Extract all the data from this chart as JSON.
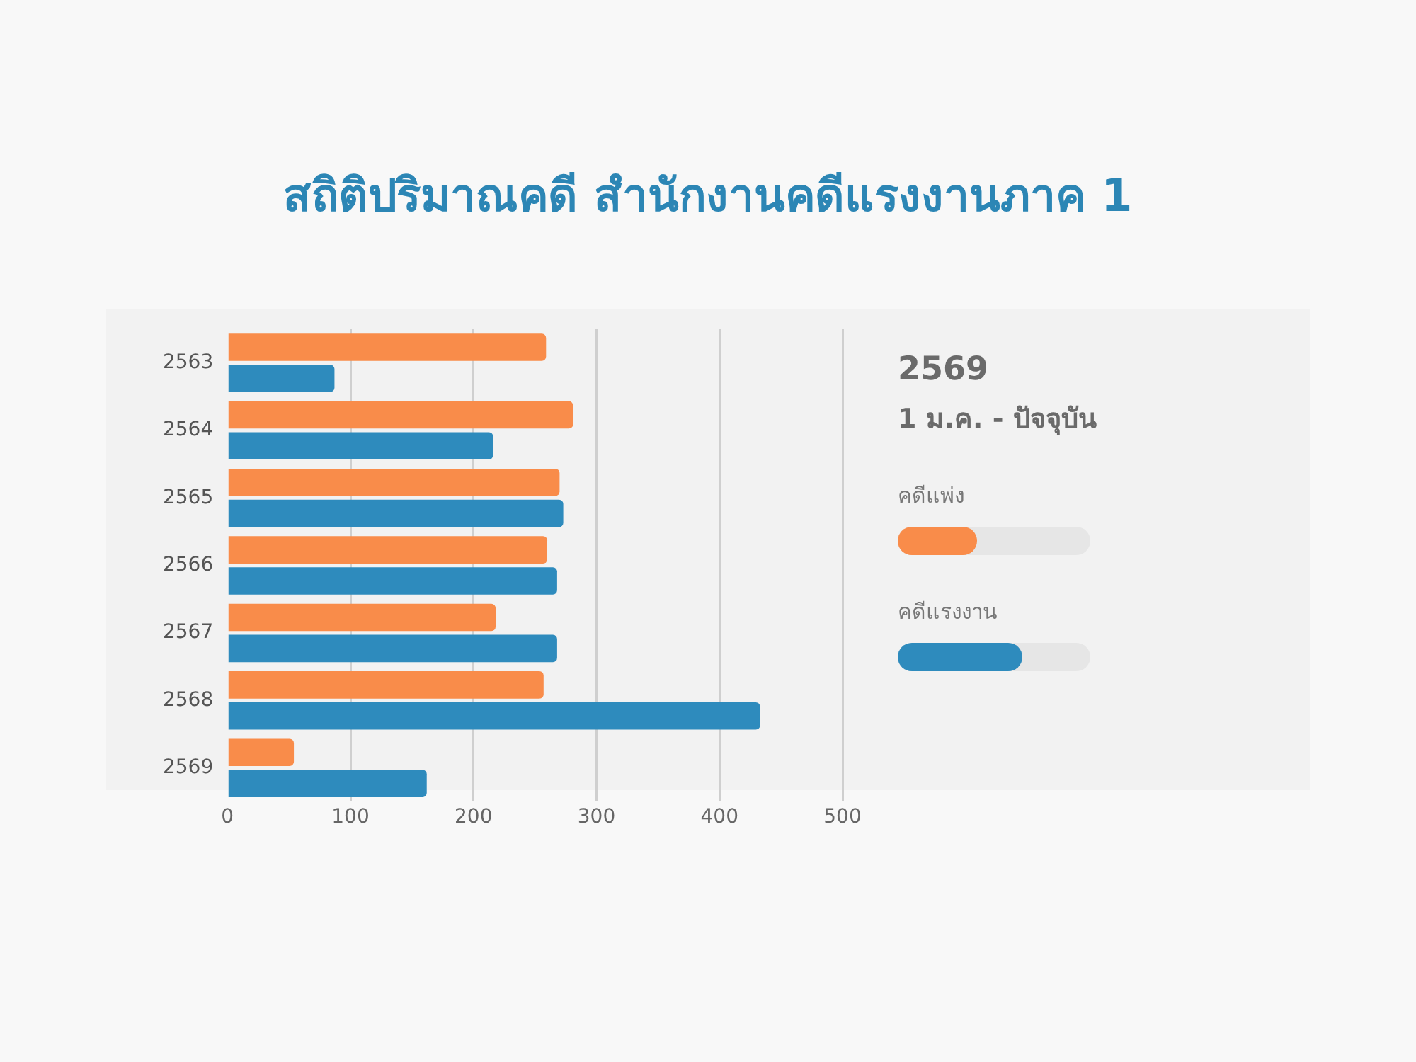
{
  "chart_data": {
    "type": "bar",
    "orientation": "horizontal",
    "title": "สถิติปริมาณคดี สำนักงานคดีแรงงานภาค 1",
    "annotations": [
      "2569",
      "1 ม.ค. - ปัจจุบัน"
    ],
    "categories": [
      "2563",
      "2564",
      "2565",
      "2566",
      "2567",
      "2568",
      "2569"
    ],
    "series": [
      {
        "name": "คดีแพ่ง",
        "color": "#f98c4a",
        "values": [
          259,
          281,
          270,
          260,
          218,
          257,
          54
        ]
      },
      {
        "name": "คดีแรงงาน",
        "color": "#2e8bbd",
        "values": [
          87,
          216,
          273,
          268,
          268,
          433,
          162
        ]
      }
    ],
    "xlim": [
      0,
      500
    ],
    "xticks": [
      0,
      100,
      200,
      300,
      400,
      500
    ],
    "grid": "x",
    "legend": "right"
  }
}
